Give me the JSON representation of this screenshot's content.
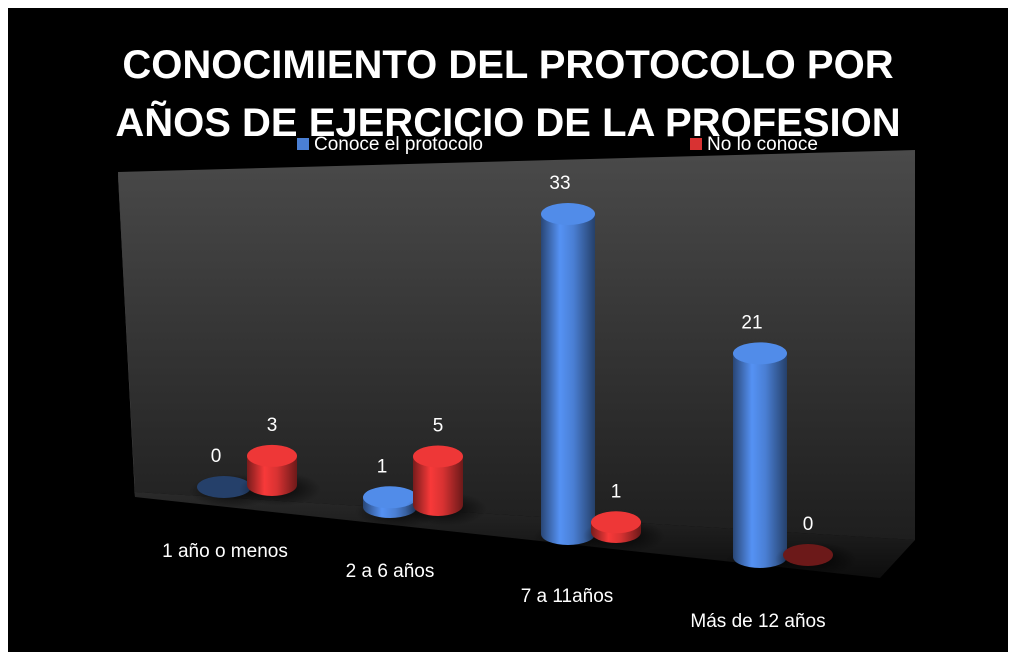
{
  "chart_data": {
    "type": "bar3d",
    "title": "CONOCIMIENTO DEL PROTOCOLO POR AÑOS DE EJERCICIO DE LA PROFESION",
    "categories": [
      "1 año o menos",
      "2 a 6 años",
      "7 a 11años",
      "Más de 12 años"
    ],
    "series": [
      {
        "name": "Conoce el protocolo",
        "color": "#4a7fd4",
        "values": [
          0,
          1,
          33,
          21
        ]
      },
      {
        "name": "No lo conoce",
        "color": "#d83232",
        "values": [
          3,
          5,
          1,
          0
        ]
      }
    ]
  }
}
